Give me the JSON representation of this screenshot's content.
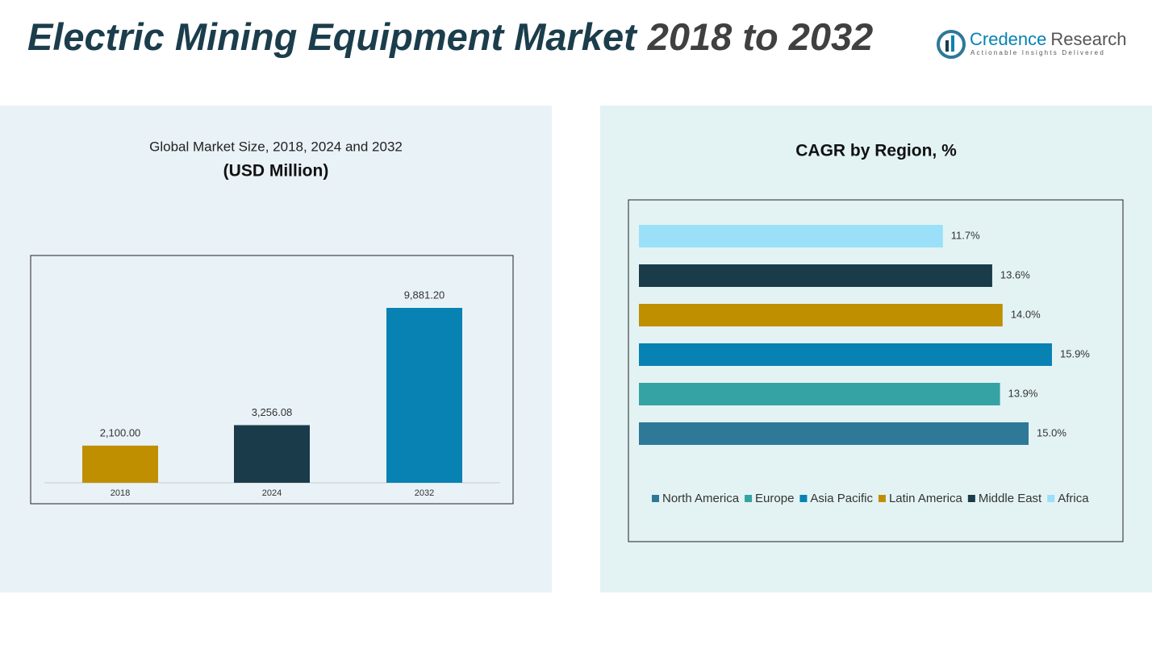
{
  "header": {
    "title_main": "Electric Mining Equipment Market",
    "title_years": "2018 to 2032",
    "logo_name_a": "Credence",
    "logo_name_b": "Research",
    "logo_tagline": "Actionable Insights Delivered"
  },
  "chart_data": [
    {
      "type": "bar",
      "title": "Global Market Size, 2018, 2024 and 2032",
      "subtitle": "(USD Million)",
      "categories": [
        "2018",
        "2024",
        "2032"
      ],
      "values": [
        2100,
        3256.08,
        9881.2
      ],
      "value_labels": [
        "2,100.00",
        "3,256.08",
        "9,881.20"
      ],
      "colors": [
        "#bf8f00",
        "#1a3c4a",
        "#0882b3"
      ]
    },
    {
      "type": "hbar",
      "title": "CAGR by Region, %",
      "categories": [
        "North America",
        "Europe",
        "Asia Pacific",
        "Latin America",
        "Middle East",
        "Africa"
      ],
      "values": [
        15.0,
        13.9,
        15.9,
        14.0,
        13.6,
        11.7
      ],
      "value_labels": [
        "15.0%",
        "13.9%",
        "15.9%",
        "14.0%",
        "13.6%",
        "11.7%"
      ],
      "colors": [
        "#2e7898",
        "#35a3a3",
        "#0882b3",
        "#bf8f00",
        "#1a3c4a",
        "#99e0f8"
      ],
      "legend": "bottom"
    }
  ]
}
